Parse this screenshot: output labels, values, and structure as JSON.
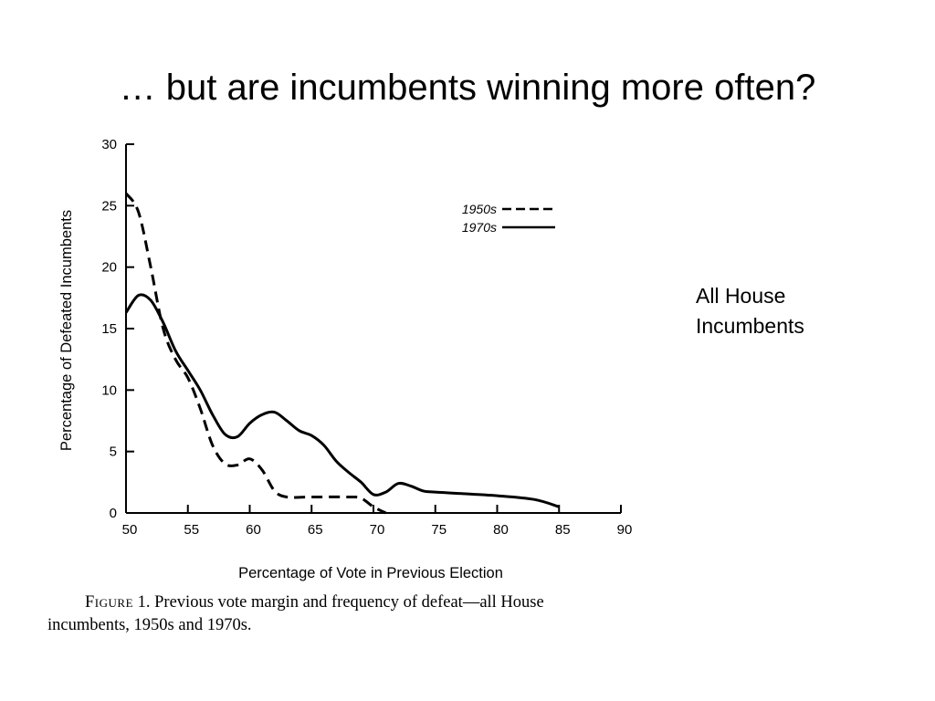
{
  "slide": {
    "title": "… but are incumbents winning more often?",
    "side_note_lines": [
      "All House",
      "Incumbents"
    ]
  },
  "caption": {
    "figure_word": "Figure",
    "first_line": " 1. Previous vote margin and frequency of defeat—all House",
    "second_line": "incumbents, 1950s and 1970s."
  },
  "chart_data": {
    "type": "line",
    "title": "",
    "xlabel": "Percentage of Vote in Previous Election",
    "ylabel": "Percentage of Defeated Incumbents",
    "xlim": [
      50,
      90
    ],
    "ylim": [
      0,
      30
    ],
    "xticks": [
      50,
      55,
      60,
      65,
      70,
      75,
      80,
      85,
      90
    ],
    "yticks": [
      0,
      5,
      10,
      15,
      20,
      25,
      30
    ],
    "grid": false,
    "legend_position": "top-right",
    "series": [
      {
        "name": "1950s",
        "style": "dashed",
        "color": "#000000",
        "x": [
          50,
          51,
          52,
          53,
          54,
          55,
          56,
          57,
          58,
          59,
          60,
          61,
          62,
          63,
          65,
          68,
          69,
          70,
          71
        ],
        "y": [
          26,
          24.5,
          20,
          15,
          12.5,
          11,
          8.5,
          5.5,
          4,
          3.9,
          4.4,
          3.5,
          1.8,
          1.3,
          1.3,
          1.3,
          1.2,
          0.5,
          0
        ]
      },
      {
        "name": "1970s",
        "style": "solid",
        "color": "#000000",
        "x": [
          50,
          51,
          52,
          53,
          54,
          55,
          56,
          57,
          58,
          59,
          60,
          61,
          62,
          63,
          64,
          65,
          66,
          67,
          68,
          69,
          70,
          71,
          72,
          73,
          74,
          75,
          80,
          83,
          85
        ],
        "y": [
          16.3,
          17.7,
          17.3,
          15.5,
          13.2,
          11.6,
          10,
          8,
          6.4,
          6.2,
          7.3,
          8,
          8.2,
          7.5,
          6.7,
          6.3,
          5.5,
          4.2,
          3.3,
          2.5,
          1.5,
          1.7,
          2.4,
          2.2,
          1.8,
          1.7,
          1.4,
          1.1,
          0.5
        ]
      }
    ]
  }
}
